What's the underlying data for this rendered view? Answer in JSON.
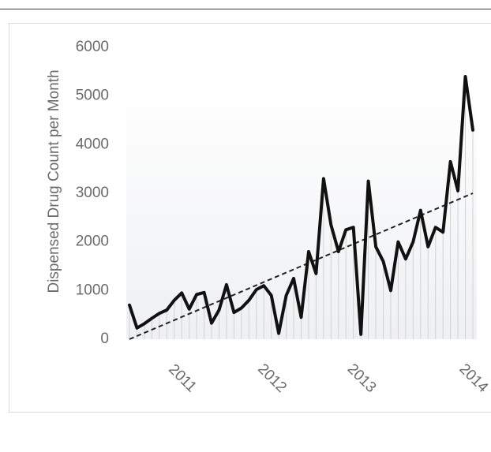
{
  "chart_data": {
    "type": "line",
    "ylabel": "Dispensed Drug Count per Month",
    "xlabel": "",
    "title": "",
    "ylim": [
      0,
      6000
    ],
    "yticks": [
      0,
      1000,
      2000,
      3000,
      4000,
      5000,
      6000
    ],
    "x_tick_labels": [
      {
        "label": "2011",
        "index": 6
      },
      {
        "label": "2012",
        "index": 18
      },
      {
        "label": "2013",
        "index": 30
      },
      {
        "label": "2014",
        "index": 45
      }
    ],
    "values": [
      700,
      230,
      320,
      430,
      530,
      600,
      800,
      950,
      620,
      920,
      960,
      330,
      600,
      1120,
      550,
      640,
      800,
      1020,
      1100,
      900,
      120,
      900,
      1250,
      450,
      1800,
      1350,
      3300,
      2350,
      1800,
      2250,
      2300,
      100,
      3250,
      1900,
      1600,
      1000,
      2000,
      1650,
      2000,
      2650,
      1900,
      2300,
      2200,
      3650,
      3050,
      5400,
      4300
    ],
    "trend": {
      "start": 0,
      "end": 3000
    },
    "grid": false,
    "colors": {
      "line": "#111111",
      "trend": "#222222",
      "drop_lines": "#d2d2d2",
      "text": "#6b6b6b"
    }
  }
}
